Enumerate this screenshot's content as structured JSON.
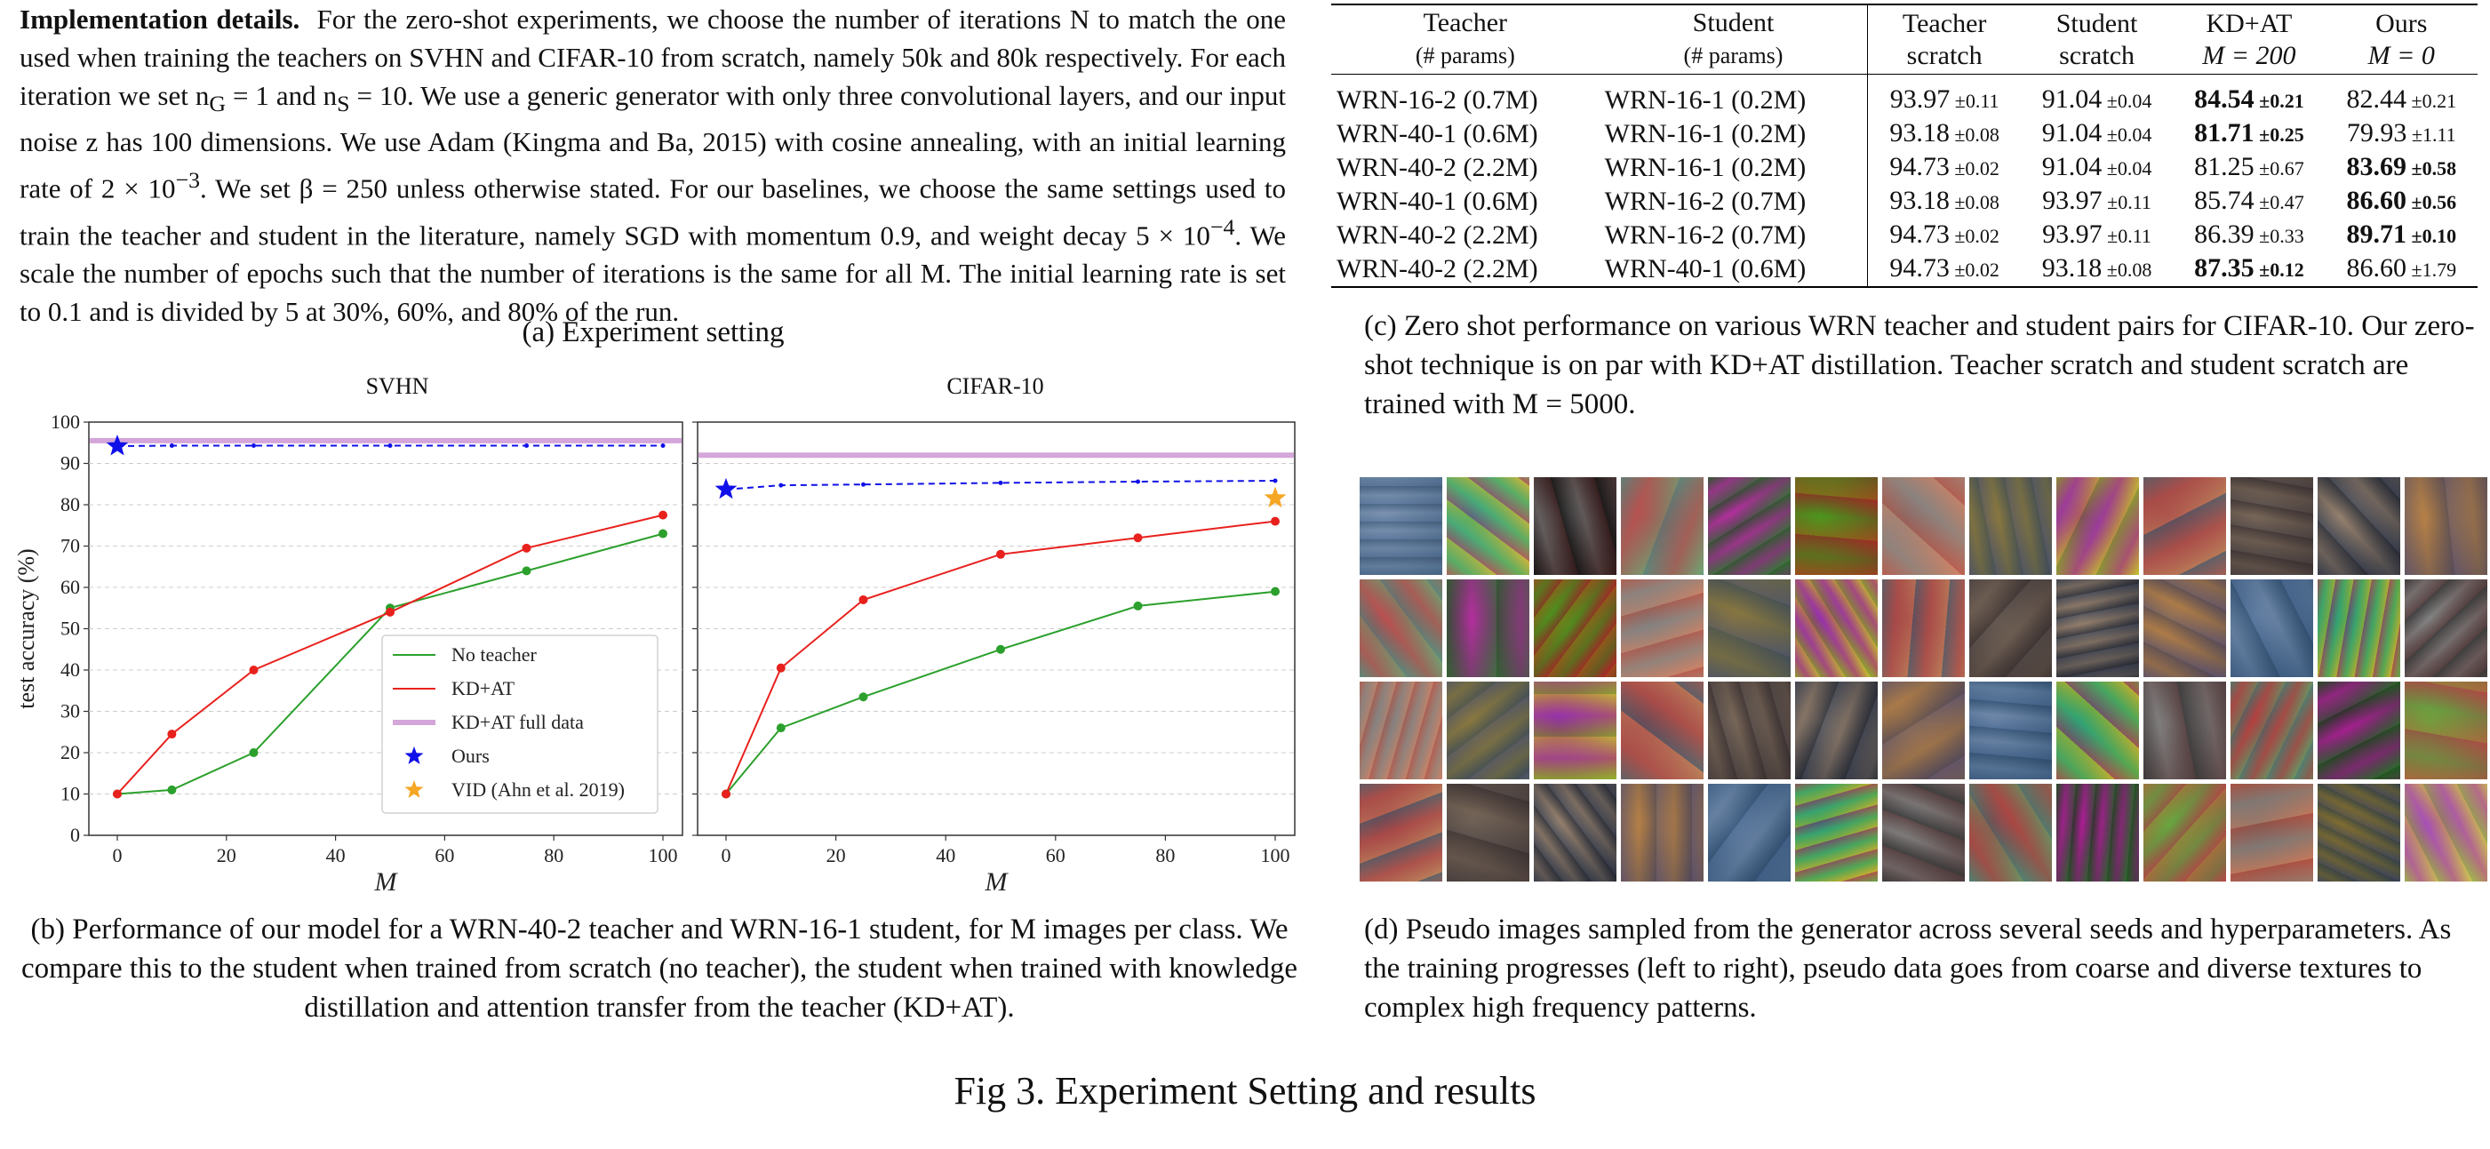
{
  "section_a": {
    "lead": "Implementation details.",
    "line1": "For the zero-shot experiments, we choose the number of iterations N to match the one used when training the teachers on SVHN and CIFAR-10 from scratch, namely 50k and 80k respectively. For each iteration we set n",
    "ng_sub": "G",
    "eq1": " = 1 and n",
    "ns_sub": "S",
    "eq2": " = 10. We use a generic generator with only three convolutional layers, and our input noise z has 100 dimensions. We use Adam (Kingma and Ba, 2015) with cosine annealing, with an initial learning rate of 2 × 10",
    "exp1": "−3",
    "eq3": ". We set β = 250 unless otherwise stated. For our baselines, we choose the same settings used to train the teacher and student in the literature, namely SGD with momentum 0.9, and weight decay 5 × 10",
    "exp2": "−4",
    "eq4": ". We scale the number of epochs such that the number of iterations is the same for all M. The initial learning rate is set to 0.1 and is divided by 5 at 30%, 60%, and 80% of the run.",
    "caption": "(a) Experiment setting"
  },
  "chart_data": [
    {
      "type": "line",
      "title": "SVHN",
      "xlabel": "M",
      "ylabel": "test accuracy (%)",
      "xlim": [
        0,
        100
      ],
      "ylim": [
        0,
        100
      ],
      "xticks": [
        0,
        20,
        40,
        60,
        80,
        100
      ],
      "yticks": [
        0,
        10,
        20,
        30,
        40,
        50,
        60,
        70,
        80,
        90,
        100
      ],
      "grid": "horizontal dashed",
      "legend_position": "lower right",
      "series": [
        {
          "name": "No teacher",
          "color": "#2ca02c",
          "x": [
            0,
            10,
            25,
            50,
            75,
            100
          ],
          "y": [
            10,
            11,
            20,
            55,
            64,
            73
          ]
        },
        {
          "name": "KD+AT",
          "color": "#e8211d",
          "x": [
            0,
            10,
            25,
            50,
            75,
            100
          ],
          "y": [
            10,
            24.5,
            40,
            54,
            69.5,
            77.5
          ]
        },
        {
          "name": "KD+AT full data",
          "color": "#d4a6d9",
          "hline": 95.5
        },
        {
          "name": "Ours",
          "color": "#1010e8",
          "style": "dashed",
          "x": [
            0,
            10,
            25,
            50,
            75,
            100
          ],
          "y": [
            94.2,
            94.3,
            94.3,
            94.3,
            94.3,
            94.3
          ],
          "marker_first": "star"
        },
        {
          "name": "VID (Ahn et al. 2019)",
          "color": "#f5a623",
          "marker": "star"
        }
      ]
    },
    {
      "type": "line",
      "title": "CIFAR-10",
      "xlabel": "M",
      "xlim": [
        0,
        100
      ],
      "ylim": [
        0,
        100
      ],
      "xticks": [
        0,
        20,
        40,
        60,
        80,
        100
      ],
      "grid": "horizontal dashed",
      "series": [
        {
          "name": "No teacher",
          "color": "#2ca02c",
          "x": [
            0,
            10,
            25,
            50,
            75,
            100
          ],
          "y": [
            10,
            26,
            33.5,
            45,
            55.5,
            59
          ]
        },
        {
          "name": "KD+AT",
          "color": "#e8211d",
          "x": [
            0,
            10,
            25,
            50,
            75,
            100
          ],
          "y": [
            10,
            40.5,
            57,
            68,
            72,
            76
          ]
        },
        {
          "name": "KD+AT full data",
          "color": "#d4a6d9",
          "hline": 92
        },
        {
          "name": "Ours",
          "color": "#1010e8",
          "style": "dashed",
          "x": [
            0,
            10,
            25,
            50,
            75,
            100
          ],
          "y": [
            83.7,
            84.7,
            84.9,
            85.3,
            85.6,
            85.8
          ],
          "marker_first": "star"
        },
        {
          "name": "VID (Ahn et al. 2019)",
          "color": "#f5a623",
          "marker": "star",
          "x": [
            100
          ],
          "y": [
            81.6
          ]
        }
      ]
    }
  ],
  "section_b": {
    "caption": "(b) Performance of our model for a WRN-40-2 teacher and WRN-16-1 student, for M images per class. We compare this to the student when trained from scratch (no teacher), the student when trained with knowledge distillation and attention transfer from the teacher (KD+AT)."
  },
  "table": {
    "headers": [
      [
        "Teacher",
        "(# params)"
      ],
      [
        "Student",
        "(# params)"
      ],
      [
        "Teacher",
        "scratch"
      ],
      [
        "Student",
        "scratch"
      ],
      [
        "KD+AT",
        "M = 200"
      ],
      [
        "Ours",
        "M = 0"
      ]
    ],
    "rows": [
      {
        "teacher": "WRN-16-2 (0.7M)",
        "student": "WRN-16-1 (0.2M)",
        "ts": "93.97",
        "ts_pm": "±0.11",
        "ss": "91.04",
        "ss_pm": "±0.04",
        "kd": "84.54",
        "kd_pm": "±0.21",
        "kd_bold": true,
        "ours": "82.44",
        "ours_pm": "±0.21",
        "ours_bold": false
      },
      {
        "teacher": "WRN-40-1 (0.6M)",
        "student": "WRN-16-1 (0.2M)",
        "ts": "93.18",
        "ts_pm": "±0.08",
        "ss": "91.04",
        "ss_pm": "±0.04",
        "kd": "81.71",
        "kd_pm": "±0.25",
        "kd_bold": true,
        "ours": "79.93",
        "ours_pm": "±1.11",
        "ours_bold": false
      },
      {
        "teacher": "WRN-40-2 (2.2M)",
        "student": "WRN-16-1 (0.2M)",
        "ts": "94.73",
        "ts_pm": "±0.02",
        "ss": "91.04",
        "ss_pm": "±0.04",
        "kd": "81.25",
        "kd_pm": "±0.67",
        "kd_bold": false,
        "ours": "83.69",
        "ours_pm": "±0.58",
        "ours_bold": true
      },
      {
        "teacher": "WRN-40-1 (0.6M)",
        "student": "WRN-16-2 (0.7M)",
        "ts": "93.18",
        "ts_pm": "±0.08",
        "ss": "93.97",
        "ss_pm": "±0.11",
        "kd": "85.74",
        "kd_pm": "±0.47",
        "kd_bold": false,
        "ours": "86.60",
        "ours_pm": "±0.56",
        "ours_bold": true
      },
      {
        "teacher": "WRN-40-2 (2.2M)",
        "student": "WRN-16-2 (0.7M)",
        "ts": "94.73",
        "ts_pm": "±0.02",
        "ss": "93.97",
        "ss_pm": "±0.11",
        "kd": "86.39",
        "kd_pm": "±0.33",
        "kd_bold": false,
        "ours": "89.71",
        "ours_pm": "±0.10",
        "ours_bold": true
      },
      {
        "teacher": "WRN-40-2 (2.2M)",
        "student": "WRN-40-1 (0.6M)",
        "ts": "94.73",
        "ts_pm": "±0.02",
        "ss": "93.18",
        "ss_pm": "±0.08",
        "kd": "87.35",
        "kd_pm": "±0.12",
        "kd_bold": true,
        "ours": "86.60",
        "ours_pm": "±1.79",
        "ours_bold": false
      }
    ],
    "caption": "(c) Zero shot performance on various WRN teacher and student pairs for CIFAR-10. Our zero-shot technique is on par with KD+AT distillation. Teacher scratch and student scratch are trained with M = 5000."
  },
  "pseudo_images": {
    "caption": "(d) Pseudo images sampled from the generator across several seeds and hyperparameters. As the training progresses (left to right), pseudo data goes from coarse and diverse textures to complex high frequency patterns."
  },
  "figure_title": "Fig 3. Experiment Setting and results"
}
